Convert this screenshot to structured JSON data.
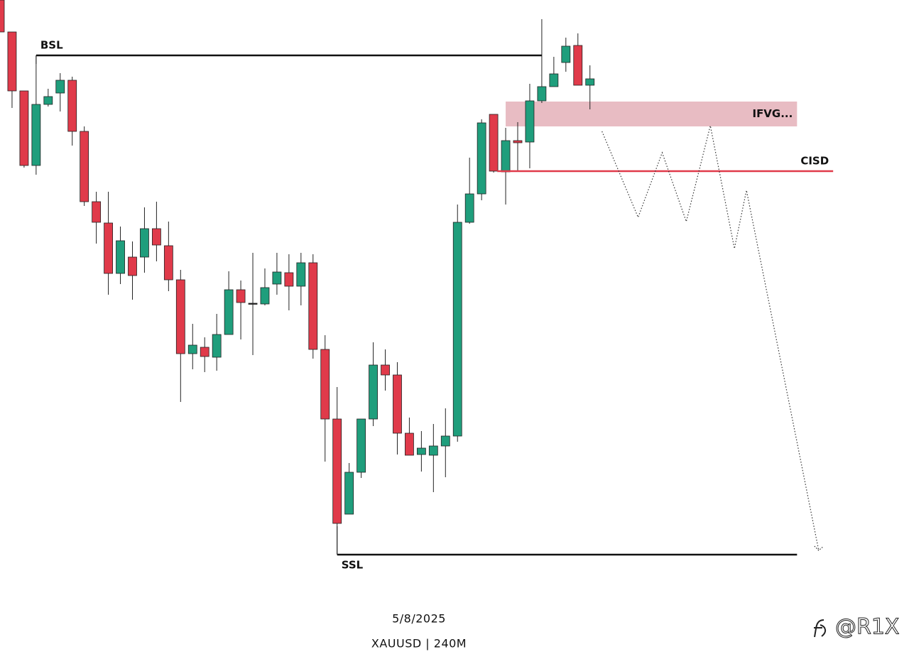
{
  "chart_data": {
    "type": "candlestick",
    "date": "5/8/2025",
    "subtitle": "XAUUSD | 240M",
    "watermark": "@R1X",
    "xlim": [
      0,
      75.5
    ],
    "ylim": [
      3340,
      3500
    ],
    "up_color": "#1f9e7c",
    "down_color": "#e03a4a",
    "open": [
      3500,
      3491,
      3474.4,
      3453.4,
      3470.6,
      3473.8,
      3477.4,
      3463,
      3443.2,
      3437.2,
      3423,
      3427.6,
      3427.6,
      3435.6,
      3430.8,
      3421.2,
      3400.4,
      3402.2,
      3399.4,
      3405.8,
      3418.4,
      3414.6,
      3414.4,
      3420,
      3423.2,
      3419.4,
      3426,
      3401.6,
      3382,
      3355.2,
      3367,
      3382,
      3397.2,
      3394.4,
      3378,
      3372,
      3371.8,
      3374.4,
      3377.2,
      3437.4,
      3445.4,
      3467.8,
      3451.6,
      3460.4,
      3460,
      3471.6,
      3475.6,
      3482.4,
      3487.2,
      3476
    ],
    "high": [
      3500,
      3491,
      3474.4,
      3484.4,
      3475,
      3479.4,
      3478.4,
      3464.4,
      3446,
      3446,
      3436.2,
      3432,
      3441.6,
      3443.2,
      3437.6,
      3424,
      3408.8,
      3405,
      3411.6,
      3423.6,
      3421,
      3428.8,
      3424.4,
      3428.8,
      3428.4,
      3428.8,
      3428.4,
      3405.6,
      3391,
      3369.6,
      3382,
      3403.6,
      3401.6,
      3398,
      3382.4,
      3378.6,
      3380.6,
      3385,
      3442.4,
      3455.6,
      3466.4,
      3467.8,
      3464,
      3465.6,
      3476.4,
      3494.6,
      3484,
      3489.4,
      3490.6,
      3481.6
    ],
    "low": [
      3491,
      3469.6,
      3452.8,
      3450.8,
      3470,
      3468.6,
      3459,
      3442,
      3431.4,
      3417,
      3420,
      3415.6,
      3423.2,
      3426.4,
      3418,
      3386.8,
      3396,
      3395.2,
      3395.6,
      3405.8,
      3404.4,
      3400,
      3414,
      3417,
      3412.6,
      3414,
      3399,
      3370,
      3344,
      3355.2,
      3365.4,
      3380,
      3390,
      3372,
      3371.8,
      3367.2,
      3361.4,
      3365.6,
      3375.6,
      3437,
      3443.6,
      3451.4,
      3442.4,
      3452,
      3452.6,
      3471,
      3475.6,
      3479.8,
      3476,
      3469.2
    ],
    "close": [
      3491,
      3474.4,
      3453.4,
      3470.6,
      3472.8,
      3477.4,
      3463,
      3443.2,
      3437.4,
      3423,
      3432.2,
      3422.4,
      3435.6,
      3431,
      3421.2,
      3400.4,
      3402.8,
      3399.6,
      3405.8,
      3418.4,
      3414.8,
      3414.6,
      3419,
      3423.4,
      3419.4,
      3426,
      3401.6,
      3382,
      3352.6,
      3367,
      3382,
      3397.2,
      3394.4,
      3378,
      3371.8,
      3373.8,
      3374.4,
      3377.2,
      3437.4,
      3445.4,
      3465.4,
      3451.8,
      3460.4,
      3459.8,
      3471.6,
      3475.6,
      3479.2,
      3487,
      3476,
      3477.8
    ],
    "levels": [
      {
        "label": "BSL",
        "value": 3484.4,
        "x": [
          3,
          45
        ],
        "color": "#111111"
      },
      {
        "label": "CISD",
        "value": 3451.8,
        "x": [
          41.3,
          69.2
        ],
        "color": "#e03a4a"
      },
      {
        "label": "SSL",
        "value": 3343.8,
        "x": [
          28,
          66.2
        ],
        "color": "#111111"
      }
    ],
    "zone": {
      "label": "IFVG...",
      "top": 3471.4,
      "bottom": 3464.4,
      "x": [
        42,
        66.2
      ],
      "color": "#e6b5bd"
    },
    "projection": {
      "x": [
        50,
        53,
        55,
        57,
        59,
        61,
        62,
        68
      ],
      "values": [
        3463,
        3438.8,
        3457,
        3437.6,
        3464.6,
        3430,
        3446.4,
        3345
      ]
    }
  }
}
